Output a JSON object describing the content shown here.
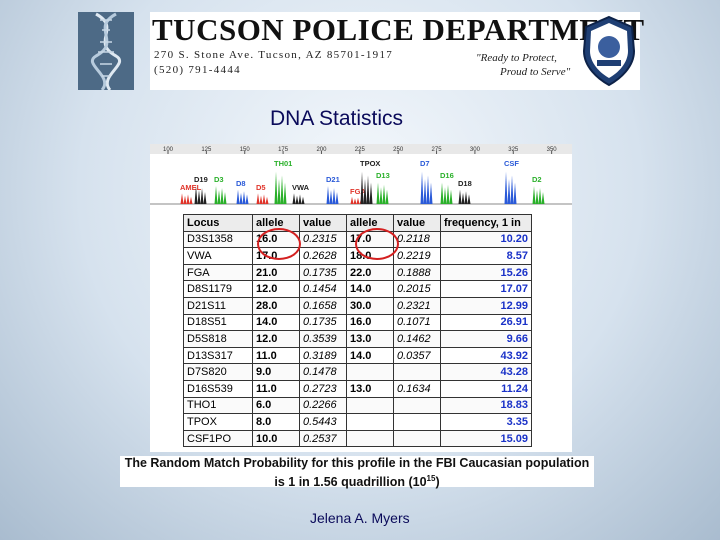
{
  "header": {
    "department": "TUCSON POLICE DEPARTMENT",
    "address_line1": "270 S. Stone Ave.  Tucson, AZ  85701-1917",
    "address_line2": "(520) 791-4444",
    "motto_line1": "\"Ready to Protect,",
    "motto_line2": "Proud to Serve\""
  },
  "slide_title": "DNA Statistics",
  "electropherogram": {
    "ruler_ticks": [
      "100",
      "125",
      "150",
      "175",
      "200",
      "225",
      "250",
      "275",
      "300",
      "325",
      "350"
    ],
    "peaks": [
      {
        "label": "AMEL",
        "color": "#e0342a"
      },
      {
        "label": "D19",
        "color": "#222222"
      },
      {
        "label": "D3",
        "color": "#2ab02a"
      },
      {
        "label": "D8",
        "color": "#2a5ad8"
      },
      {
        "label": "D5",
        "color": "#e0342a"
      },
      {
        "label": "VWA",
        "color": "#222222"
      },
      {
        "label": "TH01",
        "color": "#2ab02a"
      },
      {
        "label": "D21",
        "color": "#2a5ad8"
      },
      {
        "label": "FGA",
        "color": "#e0342a"
      },
      {
        "label": "TPOX",
        "color": "#222222"
      },
      {
        "label": "D13",
        "color": "#2ab02a"
      },
      {
        "label": "D7",
        "color": "#2a5ad8"
      },
      {
        "label": "D16",
        "color": "#2ab02a"
      },
      {
        "label": "D18",
        "color": "#222222"
      },
      {
        "label": "CSF",
        "color": "#2a5ad8"
      },
      {
        "label": "D2",
        "color": "#2ab02a"
      }
    ]
  },
  "table": {
    "headers": [
      "Locus",
      "allele",
      "value",
      "allele",
      "value",
      "frequency, 1 in"
    ],
    "rows": [
      [
        "D3S1358",
        "16.0",
        "0.2315",
        "17.0",
        "0.2118",
        "10.20"
      ],
      [
        "VWA",
        "17.0",
        "0.2628",
        "18.0",
        "0.2219",
        "8.57"
      ],
      [
        "FGA",
        "21.0",
        "0.1735",
        "22.0",
        "0.1888",
        "15.26"
      ],
      [
        "D8S1179",
        "12.0",
        "0.1454",
        "14.0",
        "0.2015",
        "17.07"
      ],
      [
        "D21S11",
        "28.0",
        "0.1658",
        "30.0",
        "0.2321",
        "12.99"
      ],
      [
        "D18S51",
        "14.0",
        "0.1735",
        "16.0",
        "0.1071",
        "26.91"
      ],
      [
        "D5S818",
        "12.0",
        "0.3539",
        "13.0",
        "0.1462",
        "9.66"
      ],
      [
        "D13S317",
        "11.0",
        "0.3189",
        "14.0",
        "0.0357",
        "43.92"
      ],
      [
        "D7S820",
        "9.0",
        "0.1478",
        "",
        "",
        "43.28"
      ],
      [
        "D16S539",
        "11.0",
        "0.2723",
        "13.0",
        "0.1634",
        "11.24"
      ],
      [
        "THO1",
        "6.0",
        "0.2266",
        "",
        "",
        "18.83"
      ],
      [
        "TPOX",
        "8.0",
        "0.5443",
        "",
        "",
        "3.35"
      ],
      [
        "CSF1PO",
        "10.0",
        "0.2537",
        "",
        "",
        "15.09"
      ]
    ]
  },
  "caption": {
    "line1": "The Random Match Probability for this profile in the FBI Caucasian population",
    "line2": "is 1 in 1.56 quadrillion (10",
    "exponent": "15",
    "line2_end": ")"
  },
  "footer": "Jelena A. Myers",
  "colors": {
    "title_text": "#0a0a5a",
    "highlight_circle": "#d42020",
    "frequency_text": "#1a32c8"
  }
}
